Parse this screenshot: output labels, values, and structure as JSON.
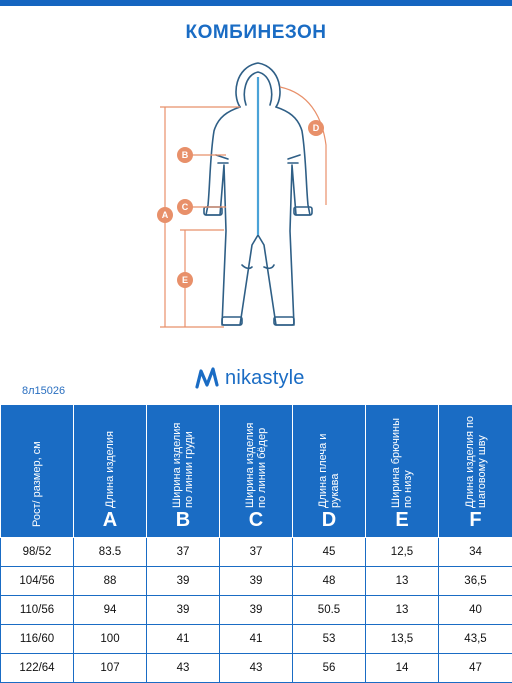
{
  "title": "КОМБИНЕЗОН",
  "figure": {
    "labels": [
      "A",
      "B",
      "C",
      "D",
      "E"
    ]
  },
  "brand": {
    "name": "nikastyle"
  },
  "article": "8л15026",
  "colors": {
    "accent": "#1a6cc4",
    "measure": "#e8906a",
    "garment": "#2f5f86"
  },
  "table": {
    "headers": [
      {
        "text": "Рост/ размер, см",
        "letter": ""
      },
      {
        "text": "Длина изделия",
        "letter": "A"
      },
      {
        "text": "Ширина изделия по линии груди",
        "letter": "B"
      },
      {
        "text": "Ширина изделия по линии бёдер",
        "letter": "C"
      },
      {
        "text": "Длина плеча и рукава",
        "letter": "D"
      },
      {
        "text": "Ширина брючины по низу",
        "letter": "E"
      },
      {
        "text": "Длина изделия по шаговому шву",
        "letter": "F"
      }
    ],
    "rows": [
      [
        "98/52",
        "83.5",
        "37",
        "37",
        "45",
        "12,5",
        "34"
      ],
      [
        "104/56",
        "88",
        "39",
        "39",
        "48",
        "13",
        "36,5"
      ],
      [
        "110/56",
        "94",
        "39",
        "39",
        "50.5",
        "13",
        "40"
      ],
      [
        "116/60",
        "100",
        "41",
        "41",
        "53",
        "13,5",
        "43,5"
      ],
      [
        "122/64",
        "107",
        "43",
        "43",
        "56",
        "14",
        "47"
      ]
    ]
  }
}
